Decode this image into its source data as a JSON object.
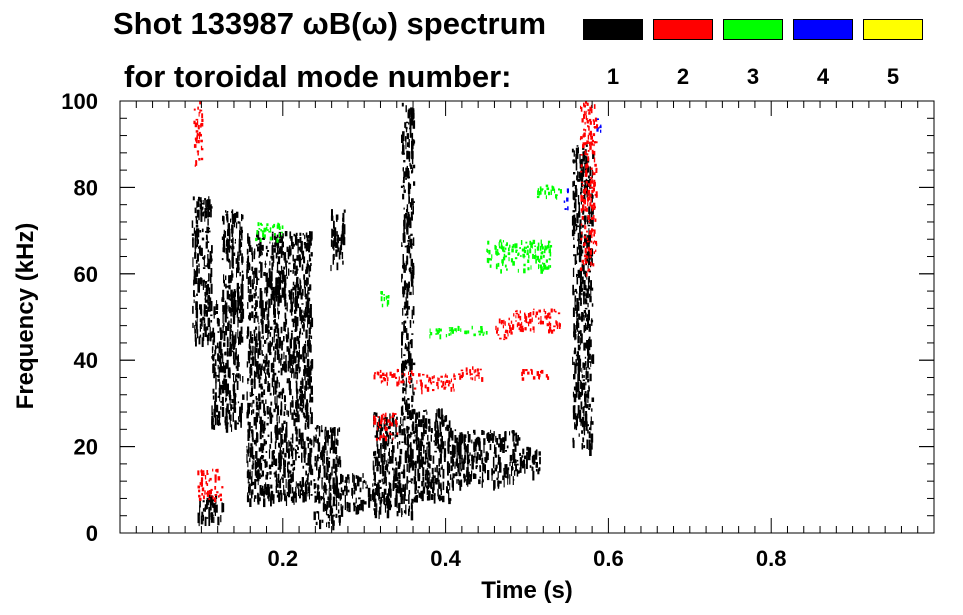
{
  "chart_data": {
    "type": "heatmap",
    "title_line1": "Shot 133987 ωB(ω) spectrum",
    "title_line2": "for toroidal mode number:",
    "xlabel": "Time (s)",
    "ylabel": "Frequency (kHz)",
    "xlim": [
      0.0,
      1.0
    ],
    "ylim": [
      0,
      100
    ],
    "x_ticks": [
      0.2,
      0.4,
      0.6,
      0.8
    ],
    "x_tick_labels": [
      "0.2",
      "0.4",
      "0.6",
      "0.8"
    ],
    "y_ticks": [
      0,
      20,
      40,
      60,
      80,
      100
    ],
    "y_tick_labels": [
      "0",
      "20",
      "40",
      "60",
      "80",
      "100"
    ],
    "legend": [
      {
        "label": "1",
        "color": "#000000"
      },
      {
        "label": "2",
        "color": "#ff0000"
      },
      {
        "label": "3",
        "color": "#00ff00"
      },
      {
        "label": "4",
        "color": "#0000ff"
      },
      {
        "label": "5",
        "color": "#ffff00"
      }
    ],
    "regions": [
      {
        "mode": 1,
        "t": [
          0.088,
          0.112
        ],
        "f": [
          45,
          78
        ]
      },
      {
        "mode": 1,
        "t": [
          0.095,
          0.125
        ],
        "f": [
          3,
          9
        ]
      },
      {
        "mode": 1,
        "t": [
          0.112,
          0.15
        ],
        "f": [
          25,
          55
        ]
      },
      {
        "mode": 1,
        "t": [
          0.125,
          0.15
        ],
        "f": [
          50,
          75
        ]
      },
      {
        "mode": 1,
        "t": [
          0.155,
          0.235
        ],
        "f": [
          8,
          70
        ]
      },
      {
        "mode": 1,
        "t": [
          0.237,
          0.27
        ],
        "f": [
          2,
          25
        ]
      },
      {
        "mode": 1,
        "t": [
          0.258,
          0.275
        ],
        "f": [
          62,
          75
        ]
      },
      {
        "mode": 1,
        "t": [
          0.27,
          0.3
        ],
        "f": [
          6,
          14
        ]
      },
      {
        "mode": 1,
        "t": [
          0.3,
          0.31
        ],
        "f": [
          8,
          12
        ]
      },
      {
        "mode": 1,
        "t": [
          0.31,
          0.345
        ],
        "f": [
          5,
          28
        ]
      },
      {
        "mode": 1,
        "t": [
          0.345,
          0.36
        ],
        "f": [
          5,
          100
        ]
      },
      {
        "mode": 1,
        "t": [
          0.36,
          0.405
        ],
        "f": [
          8,
          29
        ]
      },
      {
        "mode": 1,
        "t": [
          0.405,
          0.49
        ],
        "f": [
          12,
          24
        ]
      },
      {
        "mode": 1,
        "t": [
          0.49,
          0.515
        ],
        "f": [
          14,
          20
        ]
      },
      {
        "mode": 1,
        "t": [
          0.555,
          0.58
        ],
        "f": [
          20,
          90
        ]
      },
      {
        "mode": 2,
        "t": [
          0.09,
          0.1
        ],
        "f": [
          85,
          100
        ]
      },
      {
        "mode": 2,
        "t": [
          0.095,
          0.125
        ],
        "f": [
          8,
          15
        ]
      },
      {
        "mode": 2,
        "t": [
          0.31,
          0.34
        ],
        "f": [
          22,
          28
        ]
      },
      {
        "mode": 2,
        "t": [
          0.31,
          0.36
        ],
        "f": [
          35,
          38
        ]
      },
      {
        "mode": 2,
        "t": [
          0.36,
          0.41
        ],
        "f": [
          33,
          37
        ]
      },
      {
        "mode": 2,
        "t": [
          0.415,
          0.445
        ],
        "f": [
          36,
          39
        ]
      },
      {
        "mode": 2,
        "t": [
          0.46,
          0.48
        ],
        "f": [
          45,
          50
        ]
      },
      {
        "mode": 2,
        "t": [
          0.48,
          0.54
        ],
        "f": [
          47,
          52
        ]
      },
      {
        "mode": 2,
        "t": [
          0.49,
          0.53
        ],
        "f": [
          36,
          38
        ]
      },
      {
        "mode": 2,
        "t": [
          0.565,
          0.585
        ],
        "f": [
          60,
          100
        ]
      },
      {
        "mode": 3,
        "t": [
          0.315,
          0.33
        ],
        "f": [
          53,
          56
        ]
      },
      {
        "mode": 3,
        "t": [
          0.38,
          0.45
        ],
        "f": [
          46,
          48
        ]
      },
      {
        "mode": 3,
        "t": [
          0.45,
          0.53
        ],
        "f": [
          61,
          68
        ]
      },
      {
        "mode": 3,
        "t": [
          0.51,
          0.545
        ],
        "f": [
          78,
          81
        ]
      },
      {
        "mode": 3,
        "t": [
          0.165,
          0.2
        ],
        "f": [
          68,
          72
        ]
      },
      {
        "mode": 4,
        "t": [
          0.545,
          0.55
        ],
        "f": [
          75,
          80
        ]
      },
      {
        "mode": 4,
        "t": [
          0.585,
          0.59
        ],
        "f": [
          93,
          96
        ]
      }
    ]
  }
}
